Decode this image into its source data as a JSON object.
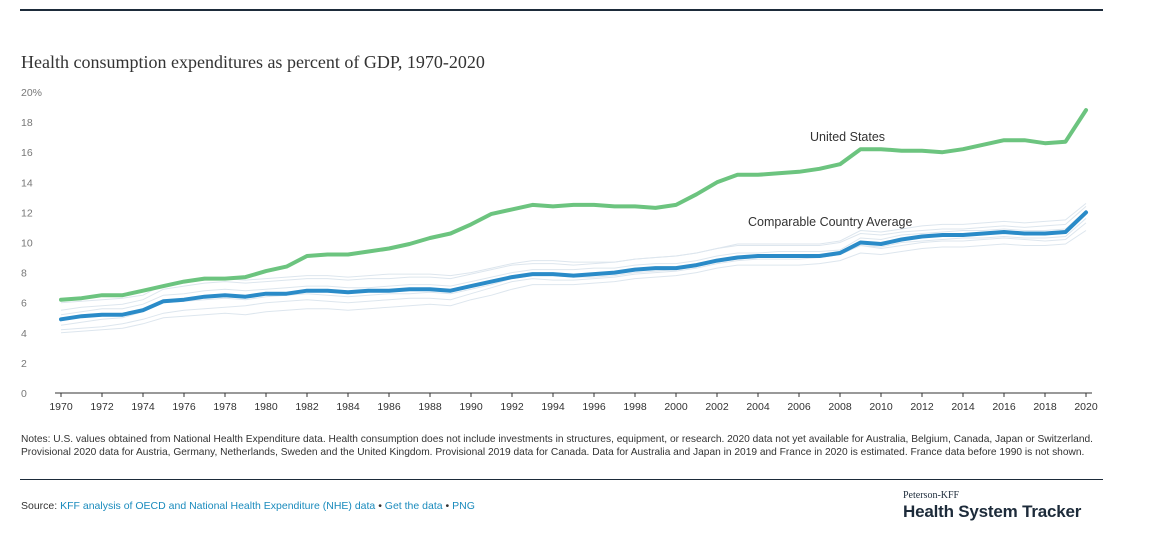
{
  "title": "Health consumption expenditures as percent of GDP, 1970-2020",
  "chart_data": {
    "type": "line",
    "title": "Health consumption expenditures as percent of GDP, 1970-2020",
    "x": [
      1970,
      1971,
      1972,
      1973,
      1974,
      1975,
      1976,
      1977,
      1978,
      1979,
      1980,
      1981,
      1982,
      1983,
      1984,
      1985,
      1986,
      1987,
      1988,
      1989,
      1990,
      1991,
      1992,
      1993,
      1994,
      1995,
      1996,
      1997,
      1998,
      1999,
      2000,
      2001,
      2002,
      2003,
      2004,
      2005,
      2006,
      2007,
      2008,
      2009,
      2010,
      2011,
      2012,
      2013,
      2014,
      2015,
      2016,
      2017,
      2018,
      2019,
      2020
    ],
    "x_ticks": [
      "1970",
      "1972",
      "1974",
      "1976",
      "1978",
      "1980",
      "1982",
      "1984",
      "1986",
      "1988",
      "1990",
      "1992",
      "1994",
      "1996",
      "1998",
      "2000",
      "2002",
      "2004",
      "2006",
      "2008",
      "2010",
      "2012",
      "2014",
      "2016",
      "2018",
      "2020"
    ],
    "y_ticks": [
      "0",
      "2",
      "4",
      "6",
      "8",
      "10",
      "12",
      "14",
      "16",
      "18",
      "20%"
    ],
    "ylim": [
      0,
      20
    ],
    "xlabel": "",
    "ylabel": "",
    "grid": false,
    "series": [
      {
        "name": "United States",
        "color": "#6cc47f",
        "values": [
          6.2,
          6.3,
          6.5,
          6.5,
          6.8,
          7.1,
          7.4,
          7.6,
          7.6,
          7.7,
          8.1,
          8.4,
          9.1,
          9.2,
          9.2,
          9.4,
          9.6,
          9.9,
          10.3,
          10.6,
          11.2,
          11.9,
          12.2,
          12.5,
          12.4,
          12.5,
          12.5,
          12.4,
          12.4,
          12.3,
          12.5,
          13.2,
          14.0,
          14.5,
          14.5,
          14.6,
          14.7,
          14.9,
          15.2,
          16.2,
          16.2,
          16.1,
          16.1,
          16.0,
          16.2,
          16.5,
          16.8,
          16.8,
          16.6,
          16.7,
          18.8
        ]
      },
      {
        "name": "Comparable Country Average",
        "color": "#2a8bc8",
        "values": [
          4.9,
          5.1,
          5.2,
          5.2,
          5.5,
          6.1,
          6.2,
          6.4,
          6.5,
          6.4,
          6.6,
          6.6,
          6.8,
          6.8,
          6.7,
          6.8,
          6.8,
          6.9,
          6.9,
          6.8,
          7.1,
          7.4,
          7.7,
          7.9,
          7.9,
          7.8,
          7.9,
          8.0,
          8.2,
          8.3,
          8.3,
          8.5,
          8.8,
          9.0,
          9.1,
          9.1,
          9.1,
          9.1,
          9.3,
          10.0,
          9.9,
          10.2,
          10.4,
          10.5,
          10.5,
          10.6,
          10.7,
          10.6,
          10.6,
          10.7,
          12.0
        ]
      }
    ],
    "background_series_color": "#dde6ee",
    "background_series": [
      [
        4.2,
        4.3,
        4.4,
        4.6,
        4.9,
        5.3,
        5.5,
        5.6,
        5.7,
        5.8,
        6.0,
        6.1,
        6.2,
        6.1,
        6.0,
        6.1,
        6.2,
        6.3,
        6.3,
        6.2,
        6.6,
        7.0,
        7.4,
        7.6,
        7.5,
        7.5,
        7.6,
        7.7,
        7.9,
        8.0,
        8.1,
        8.3,
        8.6,
        8.8,
        8.9,
        8.9,
        8.9,
        9.0,
        9.2,
        9.8,
        9.6,
        9.8,
        10.0,
        10.1,
        10.1,
        10.2,
        10.3,
        10.2,
        10.1,
        10.2,
        11.3
      ],
      [
        5.5,
        5.7,
        5.8,
        5.9,
        6.2,
        6.9,
        7.1,
        7.3,
        7.4,
        7.3,
        7.4,
        7.5,
        7.6,
        7.6,
        7.5,
        7.6,
        7.6,
        7.7,
        7.7,
        7.6,
        7.9,
        8.2,
        8.5,
        8.6,
        8.6,
        8.5,
        8.6,
        8.7,
        8.9,
        9.0,
        9.1,
        9.3,
        9.6,
        9.9,
        9.9,
        9.9,
        9.9,
        9.9,
        10.1,
        10.8,
        10.7,
        10.9,
        11.1,
        11.2,
        11.2,
        11.3,
        11.4,
        11.3,
        11.4,
        11.5,
        12.6
      ],
      [
        4.5,
        4.7,
        4.9,
        5.0,
        5.4,
        6.0,
        6.1,
        6.2,
        6.3,
        6.2,
        6.4,
        6.5,
        6.6,
        6.5,
        6.4,
        6.5,
        6.6,
        6.6,
        6.7,
        6.6,
        6.9,
        7.2,
        7.6,
        7.8,
        7.8,
        7.7,
        7.7,
        7.8,
        8.0,
        8.1,
        8.2,
        8.4,
        8.7,
        8.9,
        9.0,
        9.0,
        9.0,
        9.0,
        9.2,
        9.8,
        9.7,
        10.0,
        10.1,
        10.2,
        10.3,
        10.3,
        10.4,
        10.3,
        10.3,
        10.4,
        11.6
      ],
      [
        5.2,
        5.4,
        5.6,
        5.6,
        5.9,
        6.5,
        6.6,
        6.8,
        6.9,
        6.8,
        6.9,
        7.0,
        7.1,
        7.1,
        7.0,
        7.0,
        7.1,
        7.2,
        7.2,
        7.1,
        7.4,
        7.7,
        8.0,
        8.2,
        8.2,
        8.2,
        8.3,
        8.3,
        8.5,
        8.6,
        8.6,
        8.8,
        9.1,
        9.3,
        9.3,
        9.4,
        9.4,
        9.4,
        9.5,
        10.3,
        10.2,
        10.5,
        10.6,
        10.7,
        10.8,
        10.8,
        10.9,
        10.8,
        10.8,
        10.9,
        12.1
      ],
      [
        4.0,
        4.1,
        4.2,
        4.3,
        4.6,
        5.0,
        5.1,
        5.2,
        5.3,
        5.2,
        5.4,
        5.5,
        5.6,
        5.6,
        5.5,
        5.6,
        5.7,
        5.8,
        5.9,
        5.8,
        6.2,
        6.5,
        6.9,
        7.2,
        7.2,
        7.2,
        7.3,
        7.4,
        7.6,
        7.7,
        7.8,
        8.0,
        8.3,
        8.5,
        8.5,
        8.5,
        8.5,
        8.6,
        8.8,
        9.3,
        9.2,
        9.4,
        9.6,
        9.7,
        9.7,
        9.8,
        9.9,
        9.8,
        9.8,
        9.9,
        10.8
      ],
      [
        6.0,
        6.1,
        6.2,
        6.3,
        6.5,
        7.2,
        7.4,
        7.5,
        7.6,
        7.5,
        7.6,
        7.7,
        7.8,
        7.8,
        7.7,
        7.8,
        7.9,
        7.9,
        7.9,
        7.8,
        8.0,
        8.3,
        8.6,
        8.8,
        8.8,
        8.7,
        8.7,
        8.7,
        8.9,
        9.0,
        9.1,
        9.3,
        9.6,
        9.8,
        9.8,
        9.8,
        9.8,
        9.8,
        10.0,
        10.6,
        10.5,
        10.7,
        10.8,
        10.9,
        10.9,
        11.0,
        11.1,
        11.0,
        11.1,
        11.2,
        12.4
      ]
    ]
  },
  "notes": "Notes: U.S. values obtained from National Health Expenditure data. Health consumption does not include investments in structures, equipment, or research. 2020 data not yet available for Australia, Belgium, Canada, Japan or Switzerland. Provisional 2020 data for Austria, Germany, Netherlands, Sweden and the United Kingdom. Provisional 2019 data for Canada. Data for Australia and Japan in 2019 and France in 2020 is estimated. France data before 1990 is not shown.",
  "source": {
    "label": "Source:",
    "link_1": "KFF analysis of OECD and National Health Expenditure (NHE) data",
    "separator": "•",
    "link_2": "Get the data",
    "link_3": "PNG"
  },
  "brand": {
    "small": "Peterson-KFF",
    "big": "Health System Tracker"
  }
}
